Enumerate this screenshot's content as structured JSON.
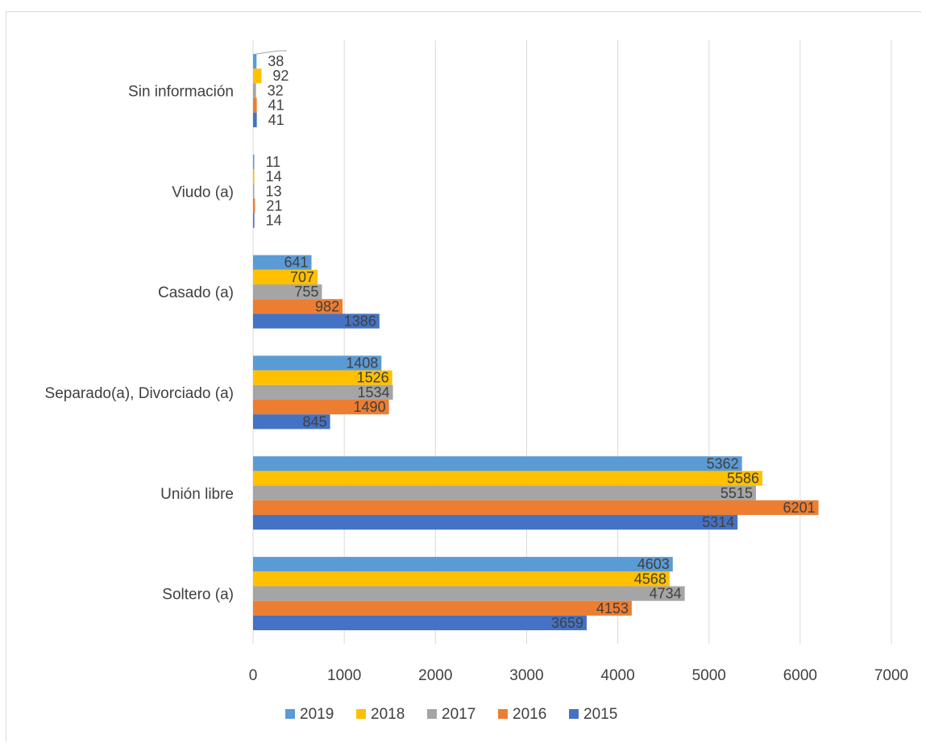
{
  "chart_data": {
    "type": "bar",
    "orientation": "horizontal",
    "categories": [
      "Sin información",
      "Viudo (a)",
      "Casado (a)",
      "Separado(a), Divorciado (a)",
      "Unión libre",
      "Soltero (a)"
    ],
    "series": [
      {
        "name": "2019",
        "color": "#5b9bd5",
        "values": [
          38,
          11,
          641,
          1408,
          5362,
          4603
        ]
      },
      {
        "name": "2018",
        "color": "#ffc000",
        "values": [
          92,
          14,
          707,
          1526,
          5586,
          4568
        ]
      },
      {
        "name": "2017",
        "color": "#a5a5a5",
        "values": [
          32,
          13,
          755,
          1534,
          5515,
          4734
        ]
      },
      {
        "name": "2016",
        "color": "#ed7d31",
        "values": [
          41,
          21,
          982,
          1490,
          6201,
          4153
        ]
      },
      {
        "name": "2015",
        "color": "#4472c4",
        "values": [
          41,
          14,
          1386,
          845,
          5314,
          3659
        ]
      }
    ],
    "xlim": [
      0,
      7000
    ],
    "xticks": [
      "0",
      "1000",
      "2000",
      "3000",
      "4000",
      "5000",
      "6000",
      "7000"
    ],
    "grid": true,
    "legend_position": "bottom",
    "title": "",
    "xlabel": "",
    "ylabel": ""
  }
}
